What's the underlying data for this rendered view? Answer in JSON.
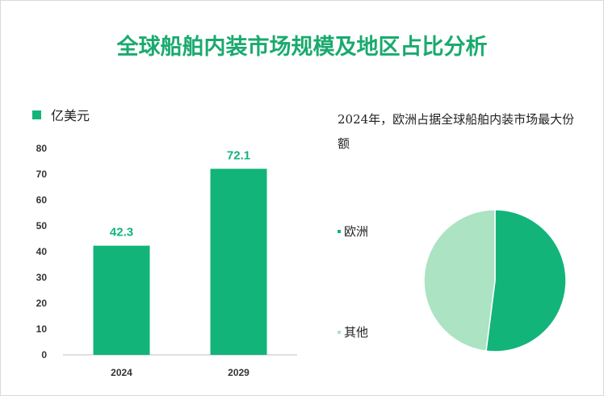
{
  "title": "全球船舶内装市场规模及地区占比分析",
  "chart_data": [
    {
      "type": "bar",
      "legend": "亿美元",
      "categories": [
        "2024",
        "2029"
      ],
      "values": [
        42.3,
        72.1
      ],
      "value_labels": [
        "42.3",
        "72.1"
      ],
      "ylim": [
        0,
        80
      ],
      "yticks": [
        "0",
        "10",
        "20",
        "30",
        "40",
        "50",
        "60",
        "70",
        "80"
      ],
      "grid": false,
      "color": "#12b47a",
      "label_color": "#12b47a"
    },
    {
      "type": "pie",
      "title": "2024年，欧洲占据全球船舶内装市场最大份额",
      "labels": [
        "欧洲",
        "其他"
      ],
      "values": [
        52,
        48
      ],
      "colors": [
        "#12b47a",
        "#abe3c3"
      ]
    }
  ]
}
